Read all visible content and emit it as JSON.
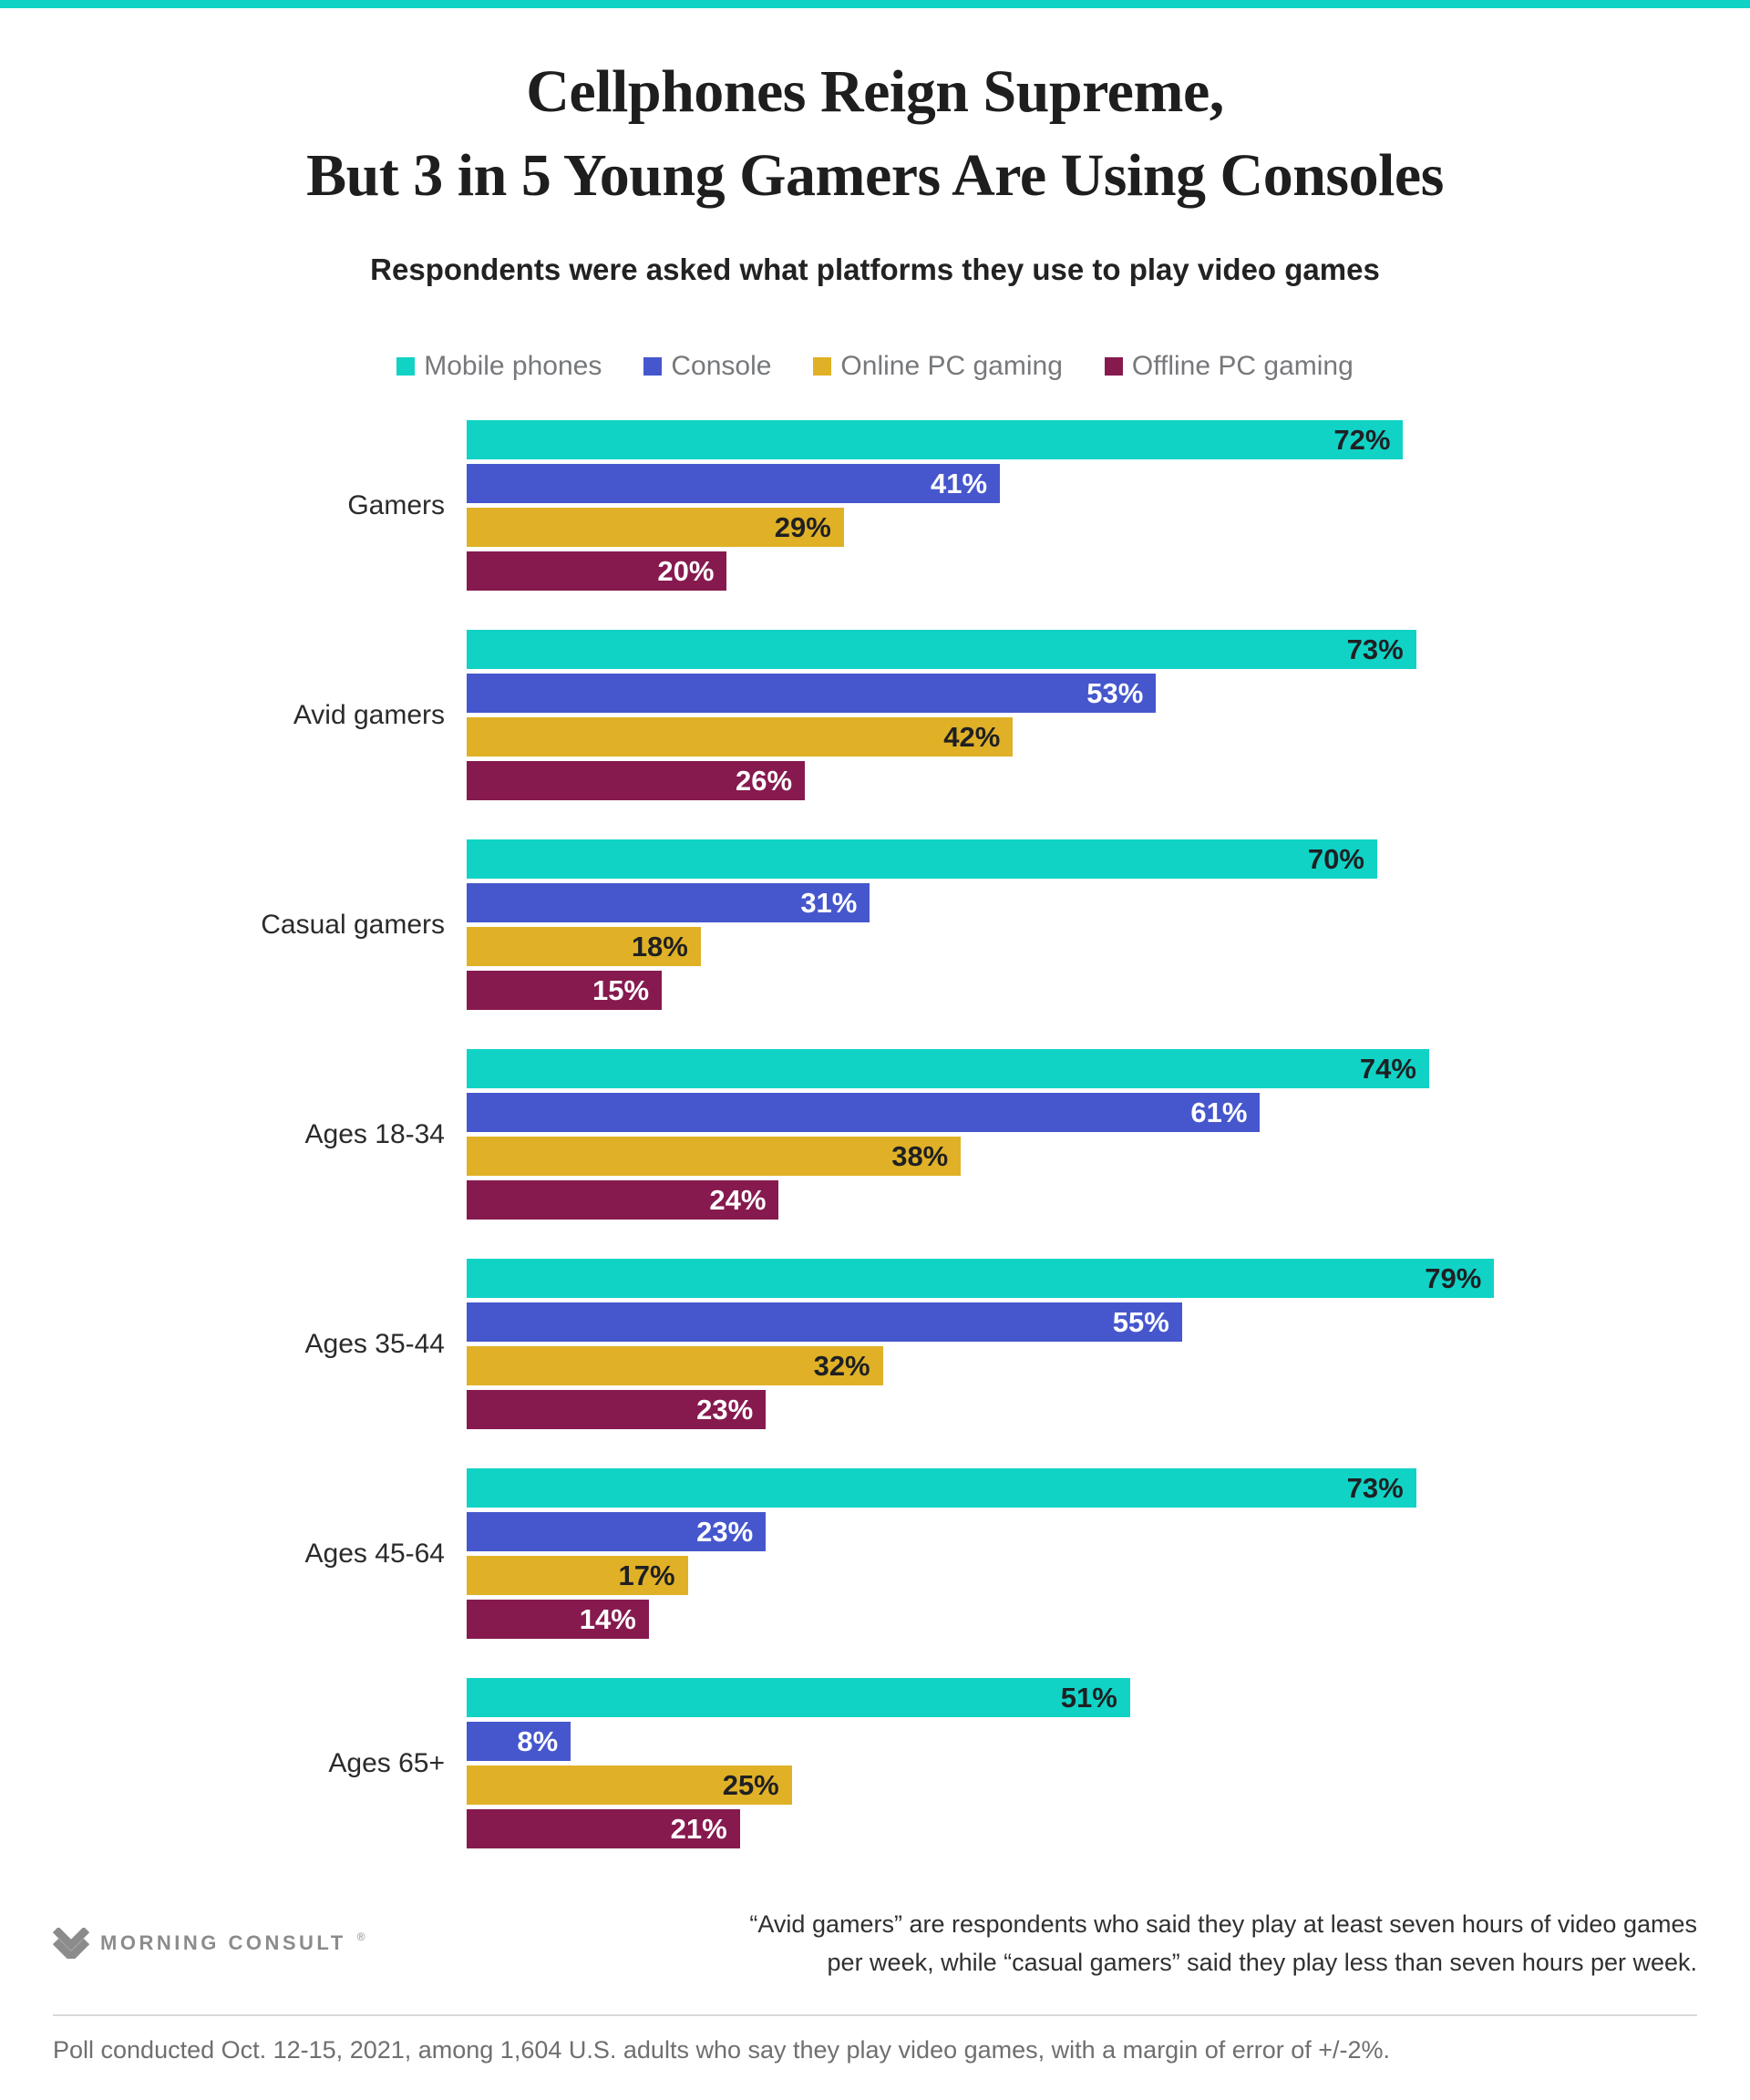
{
  "header": {
    "title_line1": "Cellphones Reign Supreme,",
    "title_line2": "But 3 in 5 Young Gamers Are Using Consoles",
    "subtitle": "Respondents were asked what platforms they use to play video games"
  },
  "colors": {
    "top_strip": "#10D3C6",
    "mobile_teal": "#10D3C6",
    "console_blue": "#4657CD",
    "online_gold": "#E0B126",
    "offline_maroon": "#861A4F"
  },
  "legend": {
    "items": [
      {
        "label": "Mobile phones",
        "color": "#10D3C6"
      },
      {
        "label": "Console",
        "color": "#4657CD"
      },
      {
        "label": "Online PC gaming",
        "color": "#E0B126"
      },
      {
        "label": "Offline PC gaming",
        "color": "#861A4F"
      }
    ]
  },
  "chart_data": {
    "type": "bar",
    "orientation": "horizontal",
    "title": "Cellphones Reign Supreme, But 3 in 5 Young Gamers Are Using Consoles",
    "subtitle": "Respondents were asked what platforms they use to play video games",
    "value_suffix": "%",
    "xlim": [
      0,
      100
    ],
    "grid": false,
    "legend_position": "top",
    "categories": [
      "Gamers",
      "Avid gamers",
      "Casual gamers",
      "Ages 18-34",
      "Ages 35-44",
      "Ages 45-64",
      "Ages 65+"
    ],
    "series": [
      {
        "name": "Mobile phones",
        "color": "#10D3C6",
        "label_color": "#1F2023",
        "values": [
          72,
          73,
          70,
          74,
          79,
          73,
          51
        ]
      },
      {
        "name": "Console",
        "color": "#4657CD",
        "label_color": "#ffffff",
        "values": [
          41,
          53,
          31,
          61,
          55,
          23,
          8
        ]
      },
      {
        "name": "Online PC gaming",
        "color": "#E0B126",
        "label_color": "#1F2023",
        "values": [
          29,
          42,
          18,
          38,
          32,
          17,
          25
        ]
      },
      {
        "name": "Offline PC gaming",
        "color": "#861A4F",
        "label_color": "#ffffff",
        "values": [
          20,
          26,
          15,
          24,
          23,
          14,
          21
        ]
      }
    ]
  },
  "footer": {
    "logo_text": "MORNING CONSULT",
    "logo_mark": "®",
    "note_line1": "“Avid gamers” are respondents who said they play at least seven hours of video games",
    "note_line2": "per week, while “casual gamers” said they play less than seven hours per week.",
    "source": "Poll conducted Oct. 12-15, 2021, among 1,604 U.S. adults who say they play video games, with a margin of error of +/-2%."
  }
}
